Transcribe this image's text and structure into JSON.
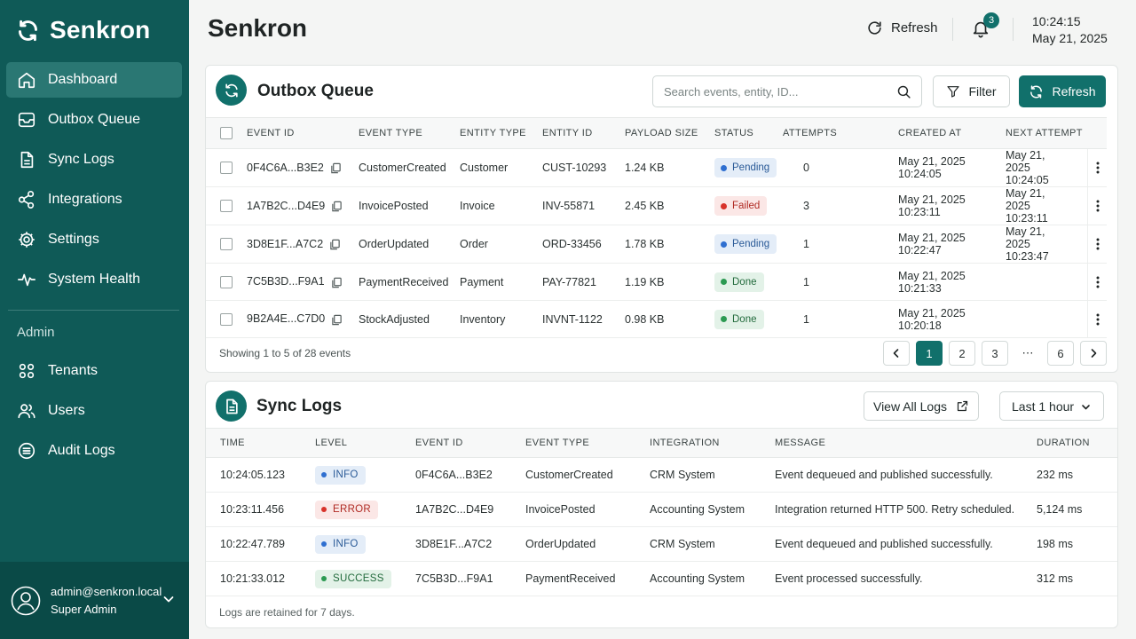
{
  "brand": {
    "name": "Senkron"
  },
  "sidebar": {
    "items": [
      {
        "label": "Dashboard",
        "icon": "home-icon"
      },
      {
        "label": "Outbox Queue",
        "icon": "inbox-icon"
      },
      {
        "label": "Sync Logs",
        "icon": "document-icon"
      },
      {
        "label": "Integrations",
        "icon": "share-nodes-icon"
      },
      {
        "label": "Settings",
        "icon": "gear-icon"
      },
      {
        "label": "System Health",
        "icon": "pulse-icon"
      }
    ],
    "active_index": 0,
    "admin_section": "Admin",
    "admin_items": [
      {
        "label": "Tenants",
        "icon": "grid-circles-icon"
      },
      {
        "label": "Users",
        "icon": "users-icon"
      },
      {
        "label": "Audit Logs",
        "icon": "list-circle-icon"
      }
    ],
    "user": {
      "email": "admin@senkron.local",
      "role": "Super Admin"
    }
  },
  "header": {
    "title": "Senkron",
    "refresh_label": "Refresh",
    "notifications_count": "3",
    "time": "10:24:15",
    "date": "May 21, 2025"
  },
  "outbox": {
    "title": "Outbox Queue",
    "search_placeholder": "Search events, entity, ID...",
    "filter_label": "Filter",
    "refresh_label": "Refresh",
    "columns": [
      "EVENT ID",
      "EVENT TYPE",
      "ENTITY TYPE",
      "ENTITY ID",
      "PAYLOAD SIZE",
      "STATUS",
      "ATTEMPTS",
      "CREATED AT",
      "NEXT ATTEMPT"
    ],
    "rows": [
      {
        "event_id": "0F4C6A...B3E2",
        "event_type": "CustomerCreated",
        "entity_type": "Customer",
        "entity_id": "CUST-10293",
        "payload_size": "1.24 KB",
        "status": "Pending",
        "attempts": "0",
        "created_at": "May 21, 2025 10:24:05",
        "next_attempt": "May 21, 2025 10:24:05"
      },
      {
        "event_id": "1A7B2C...D4E9",
        "event_type": "InvoicePosted",
        "entity_type": "Invoice",
        "entity_id": "INV-55871",
        "payload_size": "2.45 KB",
        "status": "Failed",
        "attempts": "3",
        "created_at": "May 21, 2025 10:23:11",
        "next_attempt": "May 21, 2025 10:23:11"
      },
      {
        "event_id": "3D8E1F...A7C2",
        "event_type": "OrderUpdated",
        "entity_type": "Order",
        "entity_id": "ORD-33456",
        "payload_size": "1.78 KB",
        "status": "Pending",
        "attempts": "1",
        "created_at": "May 21, 2025 10:22:47",
        "next_attempt": "May 21, 2025 10:23:47"
      },
      {
        "event_id": "7C5B3D...F9A1",
        "event_type": "PaymentReceived",
        "entity_type": "Payment",
        "entity_id": "PAY-77821",
        "payload_size": "1.19 KB",
        "status": "Done",
        "attempts": "1",
        "created_at": "May 21, 2025 10:21:33",
        "next_attempt": ""
      },
      {
        "event_id": "9B2A4E...C7D0",
        "event_type": "StockAdjusted",
        "entity_type": "Inventory",
        "entity_id": "INVNT-1122",
        "payload_size": "0.98 KB",
        "status": "Done",
        "attempts": "1",
        "created_at": "May 21, 2025 10:20:18",
        "next_attempt": ""
      }
    ],
    "footer": "Showing 1 to 5 of 28 events",
    "pages": [
      "1",
      "2",
      "3",
      "...",
      "6"
    ],
    "active_page": "1"
  },
  "sync": {
    "title": "Sync Logs",
    "view_all_label": "View All Logs",
    "range_label": "Last 1 hour",
    "columns": [
      "TIME",
      "LEVEL",
      "EVENT ID",
      "EVENT TYPE",
      "INTEGRATION",
      "MESSAGE",
      "DURATION"
    ],
    "rows": [
      {
        "time": "10:24:05.123",
        "level": "INFO",
        "event_id": "0F4C6A...B3E2",
        "event_type": "CustomerCreated",
        "integration": "CRM System",
        "message": "Event dequeued and published successfully.",
        "duration": "232 ms"
      },
      {
        "time": "10:23:11.456",
        "level": "ERROR",
        "event_id": "1A7B2C...D4E9",
        "event_type": "InvoicePosted",
        "integration": "Accounting System",
        "message": "Integration returned HTTP 500. Retry scheduled.",
        "duration": "5,124 ms"
      },
      {
        "time": "10:22:47.789",
        "level": "INFO",
        "event_id": "3D8E1F...A7C2",
        "event_type": "OrderUpdated",
        "integration": "CRM System",
        "message": "Event dequeued and published successfully.",
        "duration": "198 ms"
      },
      {
        "time": "10:21:33.012",
        "level": "SUCCESS",
        "event_id": "7C5B3D...F9A1",
        "event_type": "PaymentReceived",
        "integration": "Accounting System",
        "message": "Event processed successfully.",
        "duration": "312 ms"
      }
    ],
    "footer": "Logs are retained for 7 days."
  },
  "colors": {
    "sidebar": "#0f5a57",
    "accent": "#11706b",
    "pending": "#2f6fd0",
    "failed": "#d8322a",
    "done": "#2c9a52"
  }
}
